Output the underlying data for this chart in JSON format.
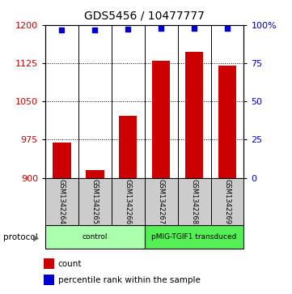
{
  "title": "GDS5456 / 10477777",
  "samples": [
    "GSM1342264",
    "GSM1342265",
    "GSM1342266",
    "GSM1342267",
    "GSM1342268",
    "GSM1342269"
  ],
  "counts": [
    970,
    915,
    1022,
    1130,
    1148,
    1120
  ],
  "percentiles": [
    97,
    97,
    97.5,
    98,
    98,
    98
  ],
  "ylim_left": [
    900,
    1200
  ],
  "ylim_right": [
    0,
    100
  ],
  "yticks_left": [
    900,
    975,
    1050,
    1125,
    1200
  ],
  "yticks_right": [
    0,
    25,
    50,
    75,
    100
  ],
  "ytick_labels_right": [
    "0",
    "25",
    "50",
    "75",
    "100%"
  ],
  "bar_color": "#cc0000",
  "dot_color": "#0000cc",
  "bar_width": 0.55,
  "protocol_groups": [
    {
      "label": "control",
      "indices": [
        0,
        1,
        2
      ],
      "color": "#aaffaa"
    },
    {
      "label": "pMIG-TGIF1 transduced",
      "indices": [
        3,
        4,
        5
      ],
      "color": "#55ee55"
    }
  ],
  "protocol_label": "protocol",
  "legend_bar_label": "count",
  "legend_dot_label": "percentile rank within the sample",
  "bar_color_red": "#cc0000",
  "dot_color_blue": "#0000cc",
  "sample_box_color": "#cccccc",
  "title_fontsize": 10,
  "tick_fontsize": 8
}
